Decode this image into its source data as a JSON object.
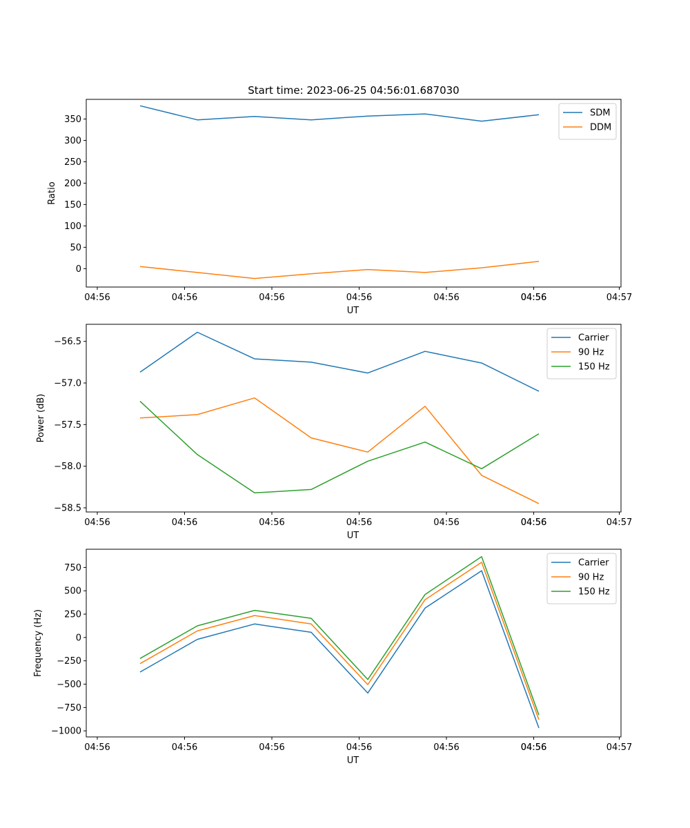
{
  "figure": {
    "title": "Start time: 2023-06-25 04:56:01.687030"
  },
  "chart_data": [
    {
      "type": "line",
      "xlabel": "UT",
      "ylabel": "Ratio",
      "x_tick_labels": [
        "04:56",
        "04:56",
        "04:56",
        "04:56",
        "04:56",
        "04:56",
        "04:56",
        "04:57"
      ],
      "y_ticks": [
        0,
        50,
        100,
        150,
        200,
        250,
        300,
        350
      ],
      "ylim": [
        -43,
        396
      ],
      "legend": "top-right",
      "grid": false,
      "series": [
        {
          "name": "SDM",
          "color": "#1f77b4",
          "values": [
            381,
            348,
            356,
            348,
            357,
            362,
            345,
            360
          ]
        },
        {
          "name": "DDM",
          "color": "#ff7f0e",
          "values": [
            5,
            -9,
            -23,
            -12,
            -2,
            -9,
            2,
            17
          ]
        }
      ]
    },
    {
      "type": "line",
      "xlabel": "UT",
      "ylabel": "Power (dB)",
      "x_tick_labels": [
        "04:56",
        "04:56",
        "04:56",
        "04:56",
        "04:56",
        "04:56",
        "04:56",
        "04:57"
      ],
      "y_ticks": [
        -56.5,
        -57.0,
        -57.5,
        -58.0,
        -58.5
      ],
      "y_tick_labels": [
        "−56.5",
        "−57.0",
        "−57.5",
        "−58.0",
        "−58.5"
      ],
      "ylim": [
        -58.55,
        -56.295
      ],
      "legend": "top-right",
      "grid": false,
      "series": [
        {
          "name": "Carrier",
          "color": "#1f77b4",
          "values": [
            -56.87,
            -56.39,
            -56.71,
            -56.75,
            -56.88,
            -56.62,
            -56.76,
            -57.1
          ]
        },
        {
          "name": "90 Hz",
          "color": "#ff7f0e",
          "values": [
            -57.42,
            -57.38,
            -57.18,
            -57.66,
            -57.83,
            -57.28,
            -58.11,
            -58.45
          ]
        },
        {
          "name": "150 Hz",
          "color": "#2ca02c",
          "values": [
            -57.22,
            -57.86,
            -58.32,
            -58.28,
            -57.94,
            -57.71,
            -58.03,
            -57.61
          ]
        }
      ]
    },
    {
      "type": "line",
      "xlabel": "UT",
      "ylabel": "Frequency (Hz)",
      "x_tick_labels": [
        "04:56",
        "04:56",
        "04:56",
        "04:56",
        "04:56",
        "04:56",
        "04:56",
        "04:57"
      ],
      "y_ticks": [
        750,
        500,
        250,
        0,
        -250,
        -500,
        -750,
        -1000
      ],
      "y_tick_labels": [
        "750",
        "500",
        "250",
        "0",
        "−250",
        "−500",
        "−750",
        "−1000"
      ],
      "ylim": [
        -1065,
        945
      ],
      "legend": "top-right",
      "grid": false,
      "series": [
        {
          "name": "Carrier",
          "color": "#1f77b4",
          "values": [
            -370,
            -20,
            145,
            55,
            -595,
            315,
            715,
            -970
          ]
        },
        {
          "name": "90 Hz",
          "color": "#ff7f0e",
          "values": [
            -280,
            70,
            235,
            145,
            -505,
            405,
            805,
            -880
          ]
        },
        {
          "name": "150 Hz",
          "color": "#2ca02c",
          "values": [
            -225,
            125,
            290,
            205,
            -450,
            460,
            865,
            -830
          ]
        }
      ]
    }
  ]
}
